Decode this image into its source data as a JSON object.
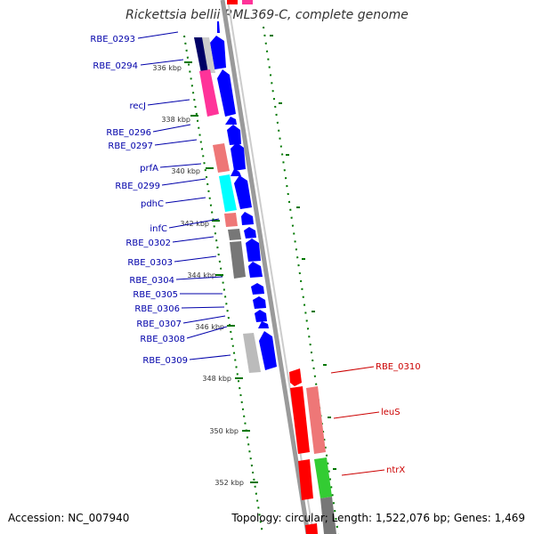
{
  "title": "Rickettsia bellii RML369-C, complete genome",
  "accession": "Accession: NC_007940",
  "summary": "Topology: circular; Length: 1,522,076 bp; Genes: 1,469",
  "colors": {
    "reverse_strand_gene": "#0000ff",
    "forward_strand_gene": "#ff0000",
    "reverse_label": "#0000aa",
    "forward_label": "#cc0000",
    "ruler_ticks": "#007700",
    "backbone": "#888888",
    "cog_pink": "#ff3399",
    "cog_salmon": "#ee7777",
    "cog_cyan": "#00ffff",
    "cog_green": "#33cc33",
    "cog_grey": "#777777",
    "cog_navy": "#000066"
  },
  "ruler_labels": [
    "336 kbp",
    "338 kbp",
    "340 kbp",
    "342 kbp",
    "344 kbp",
    "346 kbp",
    "348 kbp",
    "350 kbp",
    "352 kbp"
  ],
  "reverse_genes": [
    {
      "label": "RBE_0293"
    },
    {
      "label": "RBE_0294"
    },
    {
      "label": "recJ"
    },
    {
      "label": "RBE_0296"
    },
    {
      "label": "RBE_0297"
    },
    {
      "label": "prfA"
    },
    {
      "label": "RBE_0299"
    },
    {
      "label": "pdhC"
    },
    {
      "label": "infC"
    },
    {
      "label": "RBE_0302"
    },
    {
      "label": "RBE_0303"
    },
    {
      "label": "RBE_0304"
    },
    {
      "label": "RBE_0305"
    },
    {
      "label": "RBE_0306"
    },
    {
      "label": "RBE_0307"
    },
    {
      "label": "RBE_0308"
    },
    {
      "label": "RBE_0309"
    }
  ],
  "forward_genes": [
    {
      "label": "RBE_0310"
    },
    {
      "label": "leuS"
    },
    {
      "label": "ntrX"
    }
  ]
}
